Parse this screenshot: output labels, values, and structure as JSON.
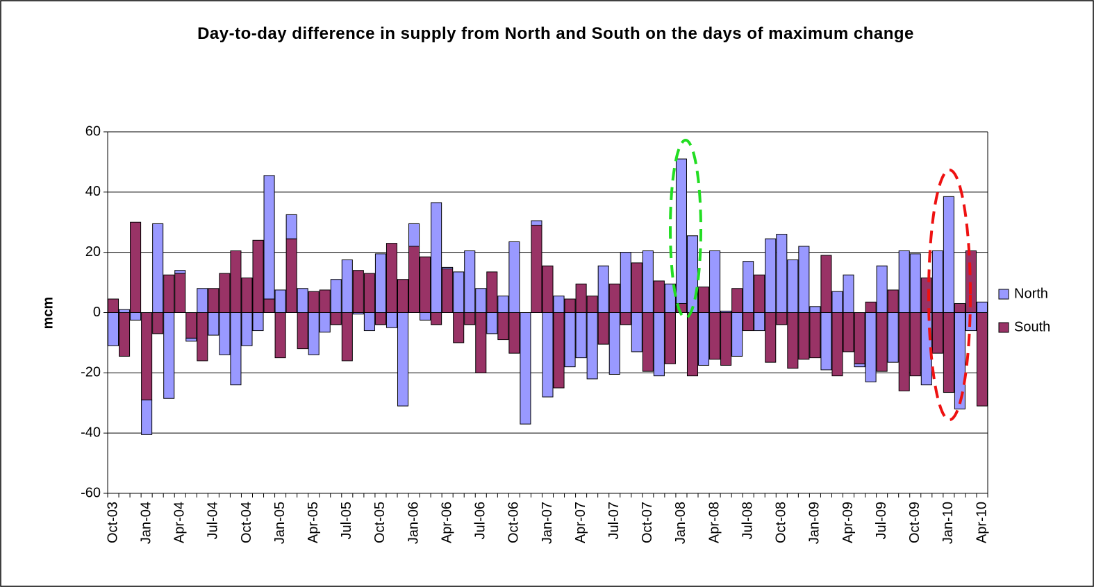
{
  "chart_data": {
    "type": "bar",
    "stacked": true,
    "title": "Day-to-day difference in supply from North and South on the days of maximum change",
    "ylabel": "mcm",
    "categories": [
      "Oct-03",
      null,
      null,
      "Jan-04",
      null,
      null,
      "Apr-04",
      null,
      null,
      "Jul-04",
      null,
      null,
      "Oct-04",
      null,
      null,
      "Jan-05",
      null,
      null,
      "Apr-05",
      null,
      null,
      "Jul-05",
      null,
      null,
      "Oct-05",
      null,
      null,
      "Jan-06",
      null,
      null,
      "Apr-06",
      null,
      null,
      "Jul-06",
      null,
      null,
      "Oct-06",
      null,
      null,
      "Jan-07",
      null,
      null,
      "Apr-07",
      null,
      null,
      "Jul-07",
      null,
      null,
      "Oct-07",
      null,
      null,
      "Jan-08",
      null,
      null,
      "Apr-08",
      null,
      null,
      "Jul-08",
      null,
      null,
      "Oct-08",
      null,
      null,
      "Jan-09",
      null,
      null,
      "Apr-09",
      null,
      null,
      "Jul-09",
      null,
      null,
      "Oct-09",
      null,
      null,
      "Jan-10",
      null,
      null,
      "Apr-10"
    ],
    "series": [
      {
        "name": "North",
        "color": "#9999ff",
        "values": [
          -11,
          1,
          -2.5,
          -11.5,
          29.5,
          -28.5,
          1,
          -1,
          8,
          -7.5,
          -14,
          -24,
          -11,
          -6,
          41,
          7.5,
          8,
          8,
          -14,
          -6.5,
          11,
          17.5,
          -0.5,
          -6,
          19.5,
          -5,
          -31,
          7.5,
          -2.5,
          36.5,
          0.5,
          13.5,
          20.5,
          8,
          -7,
          5.5,
          23.5,
          -37,
          1.5,
          -28,
          5.5,
          -18,
          -15,
          -22,
          15.5,
          -20.5,
          20,
          -13,
          20.5,
          -21,
          9.5,
          48,
          25.5,
          -17.5,
          20.5,
          0.5,
          -14.5,
          17,
          -6,
          24.5,
          26,
          17.5,
          22,
          2,
          -19,
          7,
          12.5,
          -1,
          -23,
          15.5,
          -16.5,
          20.5,
          19.5,
          -24,
          20.5,
          38.5,
          -32,
          -6,
          3.5
        ]
      },
      {
        "name": "South",
        "color": "#993366",
        "values": [
          4.5,
          -14.5,
          30,
          -29,
          -7,
          12.5,
          13,
          -8.5,
          -16,
          8,
          13,
          20.5,
          11.5,
          24,
          4.5,
          -15,
          24.5,
          -12,
          7,
          7.5,
          -4,
          -16,
          14,
          13,
          -4,
          23,
          11,
          22,
          18.5,
          -4,
          14.5,
          -10,
          -4,
          -20,
          13.5,
          -9,
          -13.5,
          0,
          29,
          15.5,
          -25,
          4.5,
          9.5,
          5.5,
          -10.5,
          9.5,
          -4,
          16.5,
          -19.5,
          10.5,
          -17,
          3,
          -21,
          8.5,
          -15.5,
          -17.5,
          8,
          -6,
          12.5,
          -16.5,
          -4,
          -18.5,
          -15.5,
          -15,
          19,
          -21,
          -13,
          -17,
          3.5,
          -19.5,
          7.5,
          -26,
          -21,
          11.5,
          -13.5,
          -26.5,
          3,
          20.5,
          -31
        ]
      }
    ],
    "ylim": [
      -60,
      60
    ],
    "yticks": [
      -60,
      -40,
      -20,
      0,
      20,
      40,
      60
    ],
    "grid": true,
    "legend": "right"
  }
}
